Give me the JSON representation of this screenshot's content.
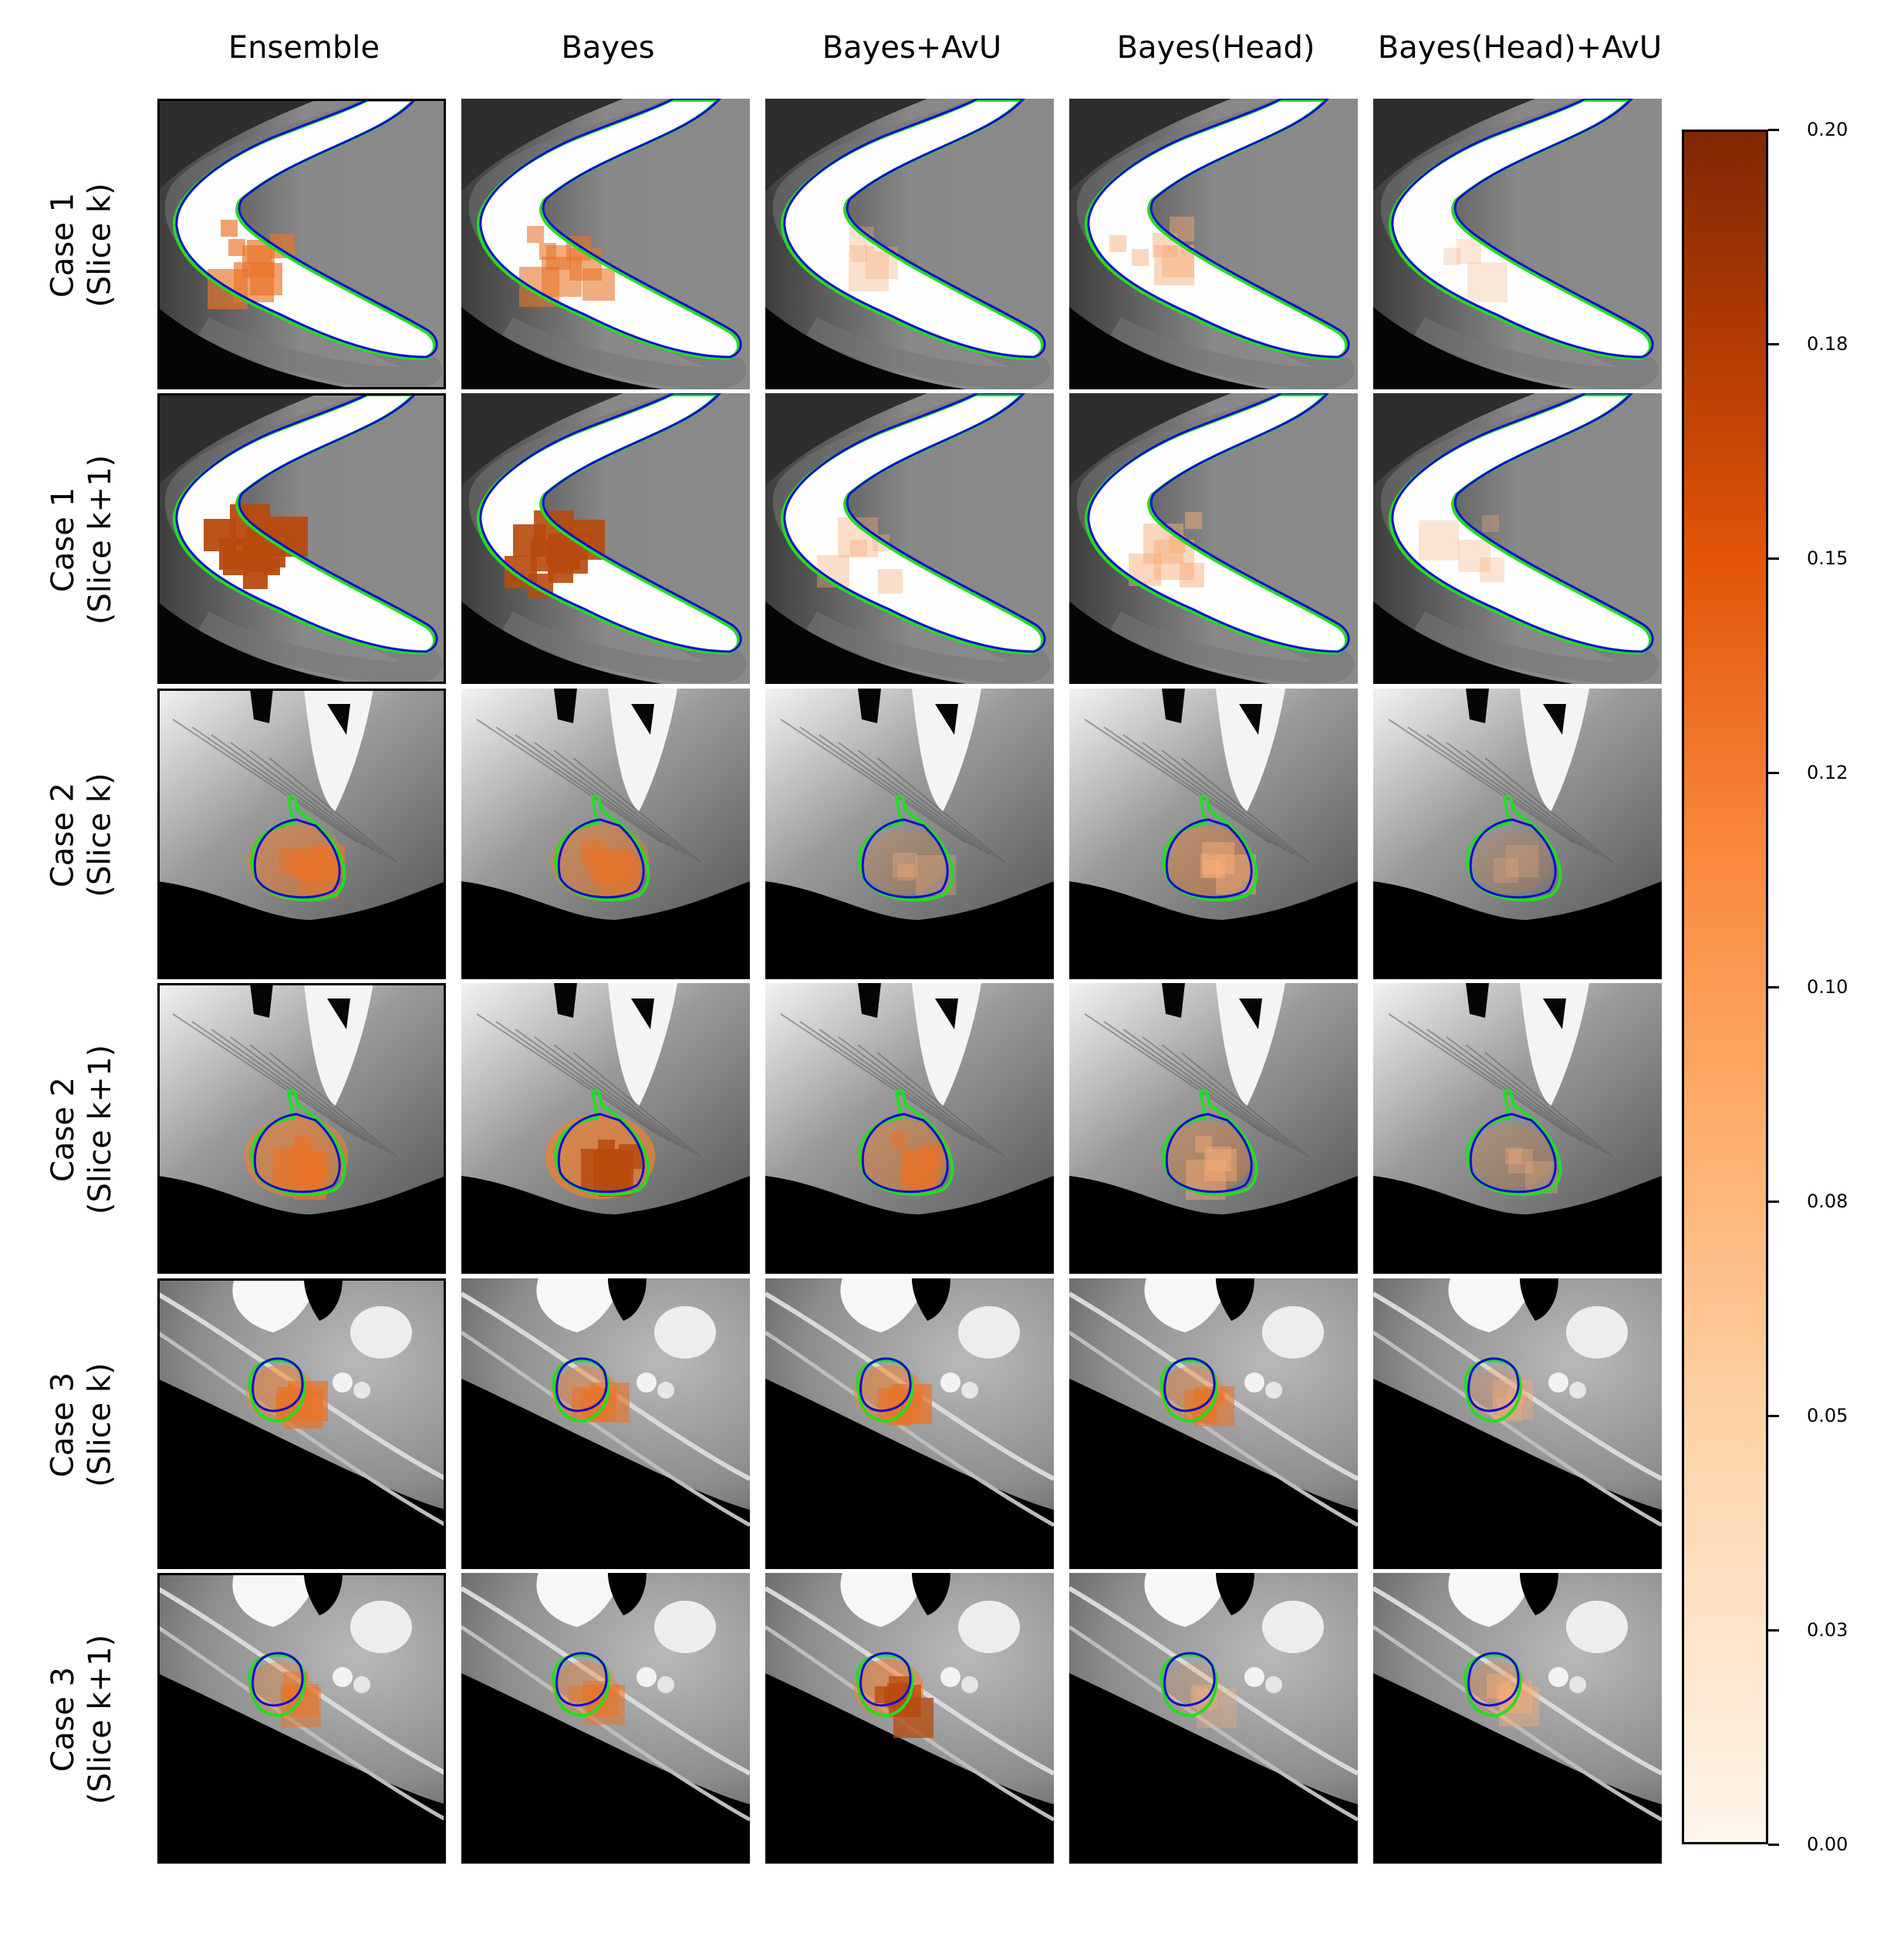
{
  "columns": [
    "Ensemble",
    "Bayes",
    "Bayes+AvU",
    "Bayes(Head)",
    "Bayes(Head)+AvU"
  ],
  "rows": [
    {
      "line1": "Case 1",
      "line2": "(Slice k)",
      "scene": "mandible"
    },
    {
      "line1": "Case 1",
      "line2": "(Slice k+1)",
      "scene": "mandible"
    },
    {
      "line1": "Case 2",
      "line2": "(Slice k)",
      "scene": "gland"
    },
    {
      "line1": "Case 2",
      "line2": "(Slice k+1)",
      "scene": "gland"
    },
    {
      "line1": "Case 3",
      "line2": "(Slice k)",
      "scene": "node"
    },
    {
      "line1": "Case 3",
      "line2": "(Slice k+1)",
      "scene": "node"
    }
  ],
  "uncertainty_level": [
    [
      0.6,
      0.5,
      0.15,
      0.3,
      0.05
    ],
    [
      1.0,
      0.95,
      0.2,
      0.35,
      0.1
    ],
    [
      0.55,
      0.55,
      0.1,
      0.35,
      0.05
    ],
    [
      0.7,
      0.85,
      0.45,
      0.3,
      0.1
    ],
    [
      0.7,
      0.55,
      0.7,
      0.5,
      0.2
    ],
    [
      0.4,
      0.45,
      0.75,
      0.1,
      0.3
    ]
  ],
  "colorbar": {
    "min": 0.0,
    "max": 0.2,
    "colormap": "Oranges",
    "ticks": [
      "0.00",
      "0.03",
      "0.05",
      "0.08",
      "0.10",
      "0.12",
      "0.15",
      "0.18",
      "0.20"
    ]
  },
  "colors": {
    "ground_truth_contour": "#22dd22",
    "prediction_contour": "#1010cc",
    "colormap_low": "#fff5eb",
    "colormap_mid": "#f9883c",
    "colormap_high": "#7f2704"
  }
}
